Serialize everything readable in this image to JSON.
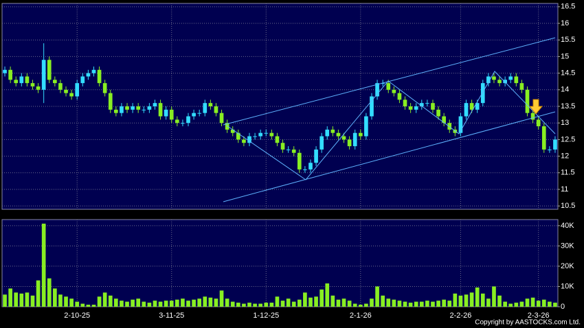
{
  "chart_data": {
    "type": "candlestick",
    "categories": [
      null,
      null,
      null,
      null,
      null,
      null,
      null,
      null,
      null,
      null,
      null,
      null,
      null,
      "2-10-25",
      null,
      null,
      null,
      null,
      null,
      null,
      null,
      null,
      null,
      null,
      null,
      null,
      null,
      null,
      null,
      null,
      "3-11-25",
      null,
      null,
      null,
      null,
      null,
      null,
      null,
      null,
      null,
      null,
      null,
      null,
      null,
      null,
      null,
      null,
      "1-12-25",
      null,
      null,
      null,
      null,
      null,
      null,
      null,
      null,
      null,
      null,
      null,
      null,
      null,
      null,
      null,
      null,
      "2-1-26",
      null,
      null,
      null,
      null,
      null,
      null,
      null,
      null,
      null,
      null,
      null,
      null,
      null,
      null,
      null,
      null,
      null,
      "2-2-26",
      null,
      null,
      null,
      null,
      null,
      null,
      null,
      null,
      null,
      null,
      null,
      null,
      null,
      "2-3-26",
      null,
      null,
      null
    ],
    "open": [
      14.5,
      14.6,
      14.3,
      14.2,
      14.4,
      14.2,
      14.1,
      14.0,
      14.9,
      14.3,
      14.2,
      14.0,
      13.9,
      13.8,
      14.2,
      14.4,
      14.5,
      14.6,
      14.2,
      13.9,
      13.4,
      13.3,
      13.5,
      13.4,
      13.5,
      13.4,
      13.4,
      13.5,
      13.6,
      13.2,
      13.4,
      13.1,
      13.0,
      13.0,
      13.2,
      13.3,
      13.3,
      13.6,
      13.5,
      13.3,
      13.0,
      12.8,
      12.7,
      12.5,
      12.4,
      12.6,
      12.6,
      12.7,
      12.7,
      12.6,
      12.4,
      12.2,
      12.2,
      12.1,
      11.6,
      11.6,
      11.8,
      12.2,
      12.6,
      12.8,
      12.7,
      12.6,
      12.5,
      12.3,
      12.7,
      12.6,
      13.2,
      13.8,
      14.2,
      14.2,
      14.0,
      13.9,
      13.7,
      13.5,
      13.4,
      13.5,
      13.6,
      13.6,
      13.4,
      13.2,
      13.0,
      12.8,
      12.7,
      13.2,
      13.6,
      13.4,
      13.6,
      14.2,
      14.4,
      14.3,
      14.2,
      14.3,
      14.4,
      14.2,
      14.0,
      13.3,
      13.1,
      12.9,
      12.2,
      12.2
    ],
    "high": [
      14.7,
      14.7,
      14.4,
      14.5,
      14.5,
      14.3,
      14.2,
      15.4,
      15.0,
      14.4,
      14.3,
      14.1,
      14.0,
      14.3,
      14.5,
      14.6,
      14.7,
      14.7,
      14.3,
      14.0,
      13.5,
      13.6,
      13.6,
      13.6,
      13.6,
      13.5,
      13.6,
      13.7,
      13.7,
      13.5,
      13.5,
      13.2,
      13.1,
      13.3,
      13.4,
      13.4,
      13.7,
      13.7,
      13.6,
      13.4,
      13.1,
      12.9,
      12.8,
      12.6,
      12.7,
      12.7,
      12.8,
      12.8,
      12.8,
      12.7,
      12.5,
      12.3,
      12.3,
      12.2,
      11.7,
      11.9,
      12.3,
      12.7,
      12.9,
      12.9,
      12.8,
      12.7,
      12.6,
      12.8,
      12.8,
      13.3,
      13.9,
      14.3,
      14.3,
      14.3,
      14.1,
      14.0,
      13.8,
      13.6,
      13.6,
      13.7,
      13.7,
      13.7,
      13.5,
      13.3,
      13.1,
      12.9,
      13.3,
      13.7,
      13.7,
      13.7,
      14.3,
      14.5,
      14.5,
      14.4,
      14.4,
      14.5,
      14.5,
      14.3,
      14.1,
      13.4,
      13.2,
      13.0,
      12.3,
      12.6
    ],
    "low": [
      14.4,
      14.2,
      14.1,
      14.1,
      14.1,
      14.0,
      13.9,
      13.6,
      14.2,
      14.1,
      13.9,
      13.8,
      13.7,
      13.7,
      14.1,
      14.3,
      14.4,
      14.1,
      13.8,
      13.3,
      13.2,
      13.2,
      13.3,
      13.3,
      13.3,
      13.3,
      13.3,
      13.4,
      13.1,
      13.1,
      13.0,
      12.9,
      12.9,
      12.9,
      13.1,
      13.2,
      13.2,
      13.4,
      13.2,
      12.9,
      12.7,
      12.6,
      12.4,
      12.3,
      12.3,
      12.5,
      12.5,
      12.6,
      12.5,
      12.3,
      12.1,
      12.1,
      12.0,
      11.5,
      11.5,
      11.5,
      11.7,
      12.1,
      12.5,
      12.6,
      12.5,
      12.4,
      12.2,
      12.2,
      12.5,
      12.5,
      13.1,
      13.7,
      14.1,
      13.9,
      13.8,
      13.6,
      13.4,
      13.3,
      13.3,
      13.4,
      13.5,
      13.3,
      13.1,
      12.9,
      12.7,
      12.6,
      12.6,
      13.1,
      13.3,
      13.3,
      13.5,
      14.1,
      14.2,
      14.1,
      14.1,
      14.2,
      14.1,
      13.9,
      13.2,
      13.0,
      12.8,
      12.1,
      12.1,
      12.1
    ],
    "close": [
      14.6,
      14.3,
      14.2,
      14.4,
      14.2,
      14.1,
      14.0,
      14.9,
      14.3,
      14.2,
      14.0,
      13.9,
      13.8,
      14.2,
      14.4,
      14.5,
      14.6,
      14.2,
      13.9,
      13.4,
      13.3,
      13.5,
      13.4,
      13.5,
      13.4,
      13.4,
      13.5,
      13.6,
      13.2,
      13.4,
      13.1,
      13.0,
      13.0,
      13.2,
      13.3,
      13.3,
      13.6,
      13.5,
      13.3,
      13.0,
      12.8,
      12.7,
      12.5,
      12.4,
      12.6,
      12.6,
      12.7,
      12.7,
      12.6,
      12.4,
      12.2,
      12.2,
      12.1,
      11.6,
      11.6,
      11.8,
      12.2,
      12.6,
      12.8,
      12.7,
      12.6,
      12.5,
      12.3,
      12.7,
      12.6,
      13.2,
      13.8,
      14.2,
      14.2,
      14.0,
      13.9,
      13.7,
      13.5,
      13.4,
      13.5,
      13.6,
      13.6,
      13.4,
      13.2,
      13.0,
      12.8,
      12.7,
      13.2,
      13.6,
      13.4,
      13.6,
      14.2,
      14.4,
      14.3,
      14.2,
      14.3,
      14.4,
      14.2,
      14.0,
      13.3,
      13.1,
      12.9,
      12.2,
      12.2,
      12.5
    ],
    "volume": [
      6000,
      9000,
      7000,
      6500,
      7000,
      5500,
      13000,
      41000,
      14000,
      9000,
      6000,
      5000,
      4000,
      2500,
      1500,
      1000,
      1000,
      5000,
      7000,
      5500,
      4000,
      3000,
      2500,
      3500,
      4000,
      2500,
      2000,
      3000,
      2500,
      3000,
      3000,
      3500,
      4000,
      3000,
      3500,
      4000,
      5000,
      4500,
      4000,
      8000,
      4000,
      2500,
      2000,
      1500,
      2000,
      1500,
      1500,
      2000,
      2000,
      5000,
      3000,
      4000,
      2500,
      3500,
      7000,
      4500,
      5000,
      8500,
      11500,
      5500,
      3500,
      4000,
      3000,
      1500,
      1000,
      1500,
      4000,
      10000,
      5500,
      4000,
      3500,
      3000,
      2500,
      2000,
      2500,
      2500,
      3000,
      2500,
      3000,
      3500,
      3000,
      6500,
      5500,
      6000,
      7000,
      9500,
      6500,
      4000,
      10000,
      5500,
      2500,
      1500,
      2000,
      2500,
      4000,
      4500,
      3000,
      3500,
      2500,
      2000
    ],
    "up_color": "#33ddff",
    "down_color": "#88ee22",
    "volume_color": "#88ee22",
    "ylim": [
      10.4,
      16.6
    ],
    "yticks": [
      {
        "value": 10.5,
        "label": "10.5"
      },
      11,
      {
        "value": 11.5,
        "label": "11.5"
      },
      12,
      {
        "value": 12.5,
        "label": "12.5"
      },
      13,
      {
        "value": 13.5,
        "label": "13.5"
      },
      14,
      {
        "value": 14.5,
        "label": "14.5"
      },
      15,
      {
        "value": 15.5,
        "label": "15.5"
      },
      16,
      {
        "value": 16.5,
        "label": "16.5"
      }
    ],
    "volume_ylim": [
      0,
      43000
    ],
    "volume_yticks": [
      0,
      {
        "value": 10000,
        "label": "10K"
      },
      {
        "value": 20000,
        "label": "20K"
      },
      {
        "value": 30000,
        "label": "30K"
      },
      {
        "value": 40000,
        "label": "40K"
      }
    ],
    "grid": true,
    "copyright": "Copyright by AASTOCKS.com Ltd."
  }
}
